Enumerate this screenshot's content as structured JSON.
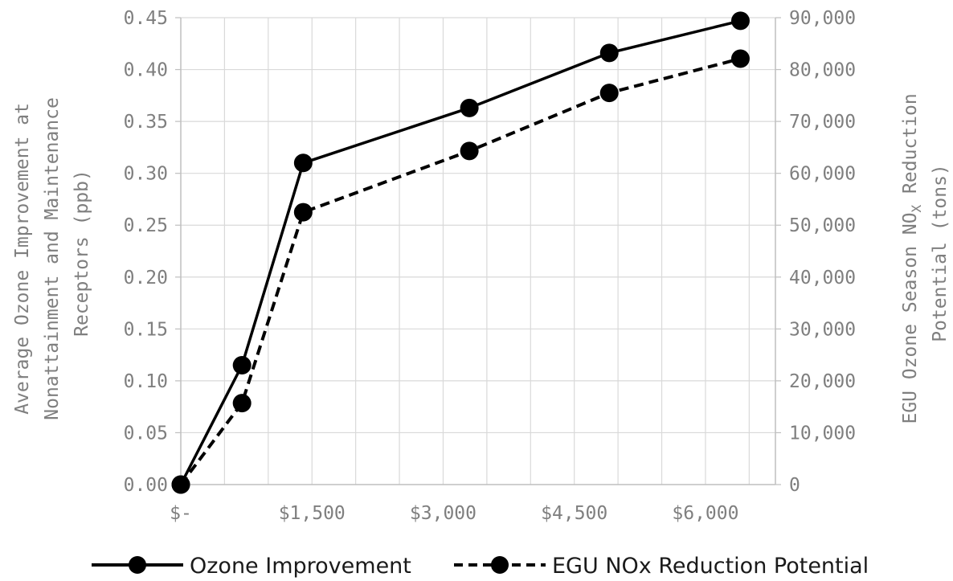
{
  "chart_data": {
    "type": "line",
    "x": [
      0,
      700,
      1400,
      3300,
      4900,
      6400
    ],
    "x_ticks": [
      "$-",
      "$1,500",
      "$3,000",
      "$4,500",
      "$6,000"
    ],
    "x_tick_values": [
      0,
      1500,
      3000,
      4500,
      6000
    ],
    "xlim": [
      0,
      6800
    ],
    "y_left": {
      "label_lines": [
        "Average Ozone Improvement at",
        "Nonattainment and Maintenance",
        "Receptors (ppb)"
      ],
      "ticks": [
        "0.00",
        "0.05",
        "0.10",
        "0.15",
        "0.20",
        "0.25",
        "0.30",
        "0.35",
        "0.40",
        "0.45"
      ],
      "ylim": [
        0,
        0.45
      ]
    },
    "y_right": {
      "label_line1_pre": "EGU Ozone Season NO",
      "label_line1_sub": "X",
      "label_line1_post": " Reduction",
      "label_line2": "Potential (tons)",
      "ticks": [
        "0",
        "10,000",
        "20,000",
        "30,000",
        "40,000",
        "50,000",
        "60,000",
        "70,000",
        "80,000",
        "90,000"
      ],
      "ylim": [
        0,
        90000
      ]
    },
    "series": [
      {
        "name": "Ozone Improvement",
        "axis": "left",
        "style": "solid",
        "color": "#000000",
        "values": [
          0,
          0.115,
          0.31,
          0.363,
          0.416,
          0.447
        ]
      },
      {
        "name": "EGU NOx Reduction Potential",
        "axis": "right",
        "style": "dashed",
        "color": "#000000",
        "values": [
          0,
          15700,
          52500,
          64300,
          75500,
          82100
        ]
      }
    ],
    "grid": true,
    "legend_position": "bottom"
  }
}
